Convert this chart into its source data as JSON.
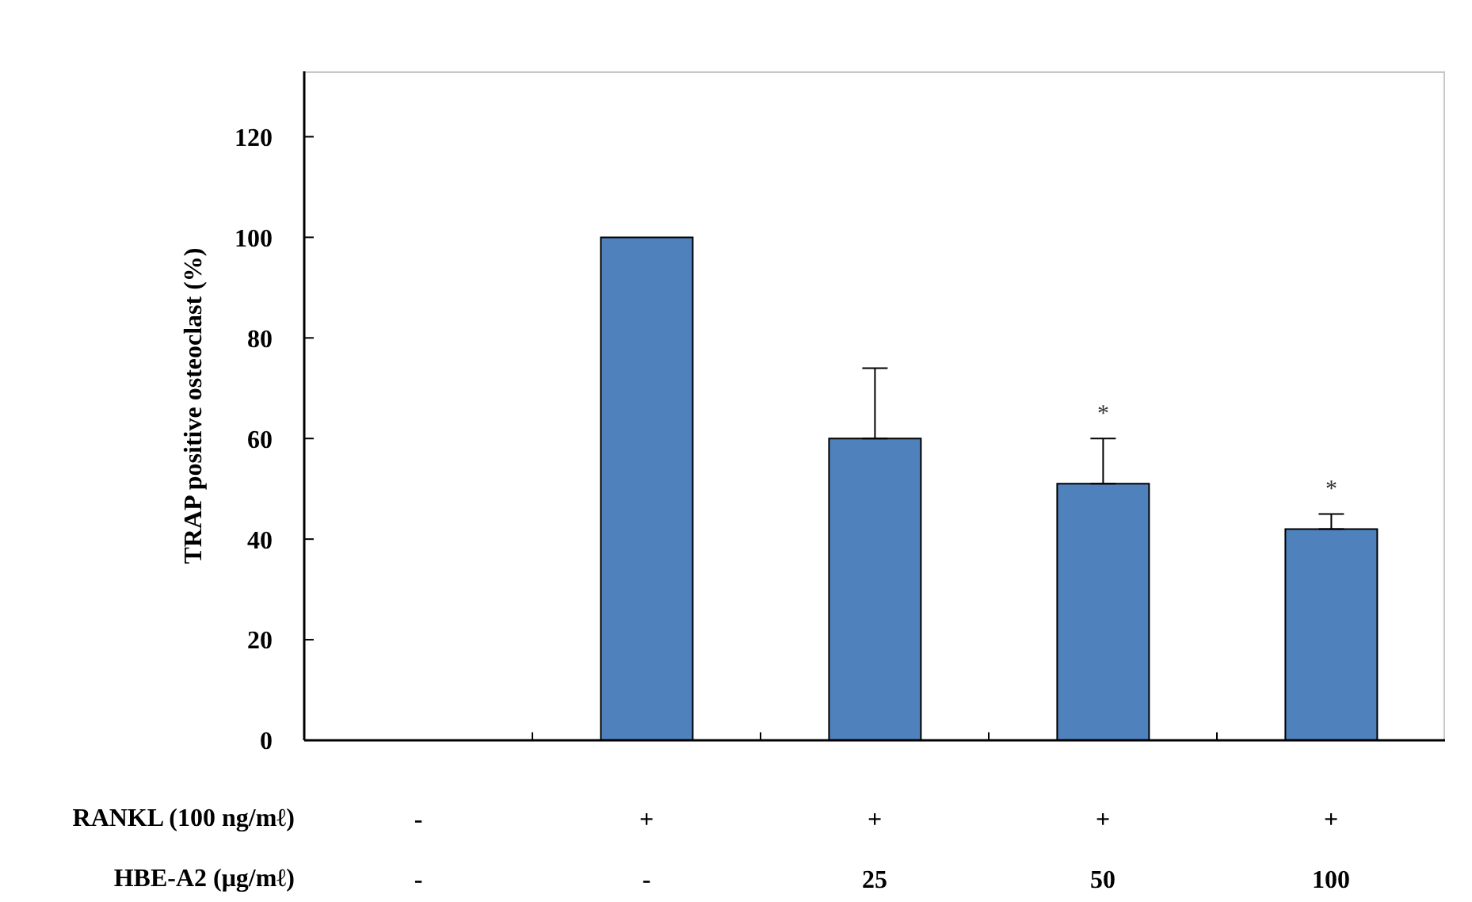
{
  "chart_data": {
    "type": "bar",
    "ylabel": "TRAP positive osteoclast (%)",
    "categories": [
      "-\n-",
      "+\n-",
      "+\n25",
      "+\n50",
      "+\n100"
    ],
    "values": [
      null,
      100,
      60,
      51,
      42
    ],
    "errors": [
      null,
      null,
      [
        60,
        74
      ],
      [
        51,
        60
      ],
      [
        42,
        45
      ]
    ],
    "value_labels": [
      null,
      null,
      null,
      "*",
      "*"
    ],
    "color": "#4f81bd",
    "ylim": [
      0,
      133
    ],
    "yticks": [
      0,
      20,
      40,
      60,
      80,
      100,
      120
    ],
    "annotations": [
      "RANKL (100 ng/mℓ)",
      "HBE-A2 (μg/mℓ)"
    ]
  }
}
